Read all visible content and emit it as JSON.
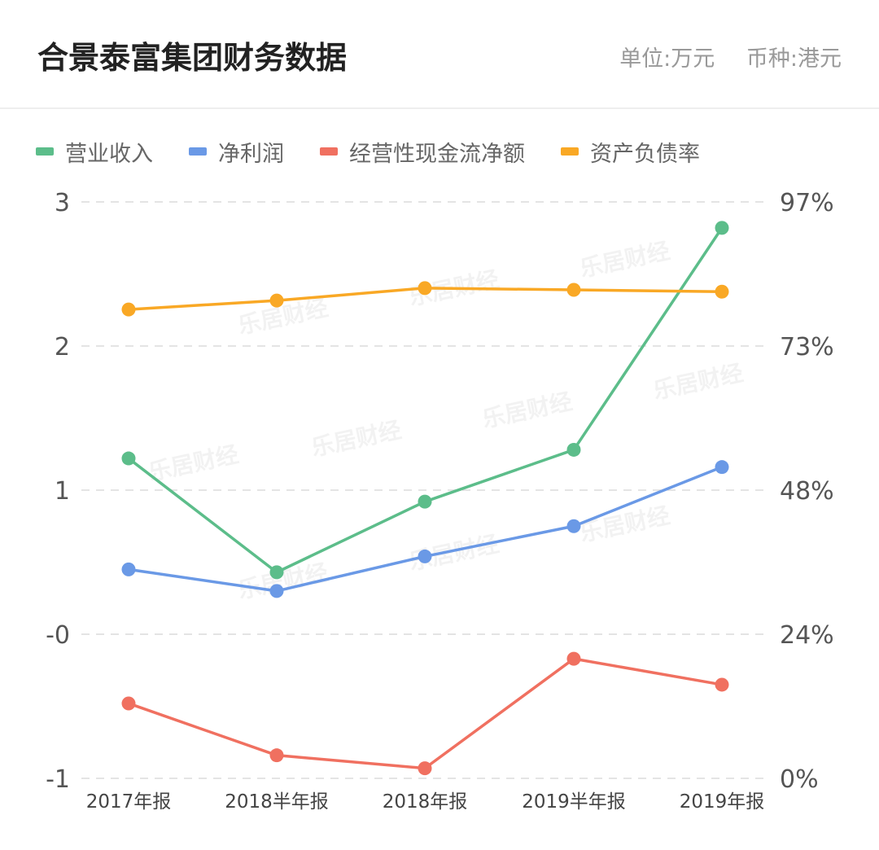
{
  "header": {
    "title": "合景泰富集团财务数据",
    "unit": "单位:万元",
    "currency": "币种:港元"
  },
  "chart_data": {
    "type": "line",
    "categories": [
      "2017年报",
      "2018半年报",
      "2018年报",
      "2019半年报",
      "2019年报"
    ],
    "y_left": {
      "ticks": [
        "3",
        "2",
        "1",
        "-0",
        "-1"
      ],
      "range": [
        -1,
        3
      ]
    },
    "y_right": {
      "ticks": [
        "97%",
        "73%",
        "48%",
        "24%",
        "0%"
      ],
      "range": [
        0,
        97
      ]
    },
    "grid": "dashed-horizontal",
    "legend_position": "top-left",
    "series": [
      {
        "name": "营业收入",
        "axis": "left",
        "color": "#5cbd8a",
        "values": [
          1.22,
          0.43,
          0.92,
          1.28,
          2.82
        ]
      },
      {
        "name": "净利润",
        "axis": "left",
        "color": "#6a99e6",
        "values": [
          0.45,
          0.3,
          0.54,
          0.75,
          1.16
        ]
      },
      {
        "name": "经营性现金流净额",
        "axis": "left",
        "color": "#f07060",
        "values": [
          -0.48,
          -0.84,
          -0.93,
          -0.17,
          -0.35
        ]
      },
      {
        "name": "资产负债率",
        "axis": "right",
        "color": "#f9a825",
        "values": [
          78.9,
          80.4,
          82.5,
          82.2,
          81.9
        ]
      }
    ],
    "watermark": "乐居财经"
  }
}
